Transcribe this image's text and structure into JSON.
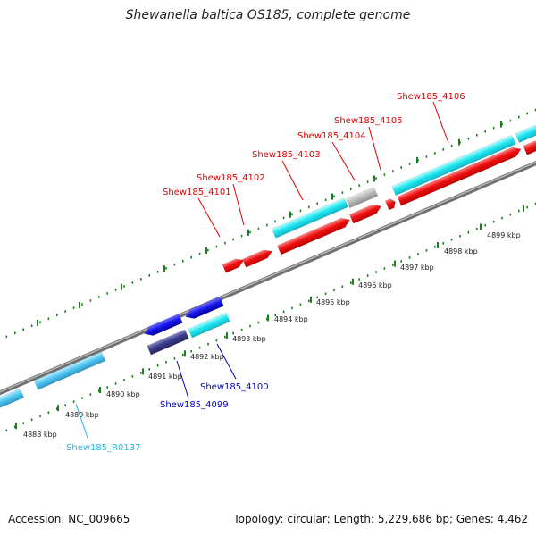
{
  "title": "Shewanella baltica OS185, complete genome",
  "footer": {
    "accession": "Accession: NC_009665",
    "summary": "Topology: circular; Length: 5,229,686 bp; Genes: 4,462"
  },
  "colors": {
    "forward_gene": "#ee1111",
    "forward_label": "#dd0000",
    "cds_cyan": "#22e8f0",
    "reverse_gene": "#1a1aee",
    "reverse_label": "#0000bb",
    "pseudo_gray": "#b8b8b8",
    "rrna_lightblue": "#55c8f2",
    "rrna_label": "#22b8e6",
    "tick_green": "#1b7f1b",
    "backbone": "#8a8a8a"
  },
  "kbp_labels": [
    "4888 kbp",
    "4889 kbp",
    "4890 kbp",
    "4891 kbp",
    "4892 kbp",
    "4893 kbp",
    "4894 kbp",
    "4895 kbp",
    "4896 kbp",
    "4897 kbp",
    "4898 kbp",
    "4899 kbp"
  ],
  "gene_labels": {
    "g4101": "Shew185_4101",
    "g4102": "Shew185_4102",
    "g4103": "Shew185_4103",
    "g4104": "Shew185_4104",
    "g4105": "Shew185_4105",
    "g4106": "Shew185_4106",
    "g4100": "Shew185_4100",
    "g4099": "Shew185_4099",
    "r0137": "Shew185_R0137"
  }
}
